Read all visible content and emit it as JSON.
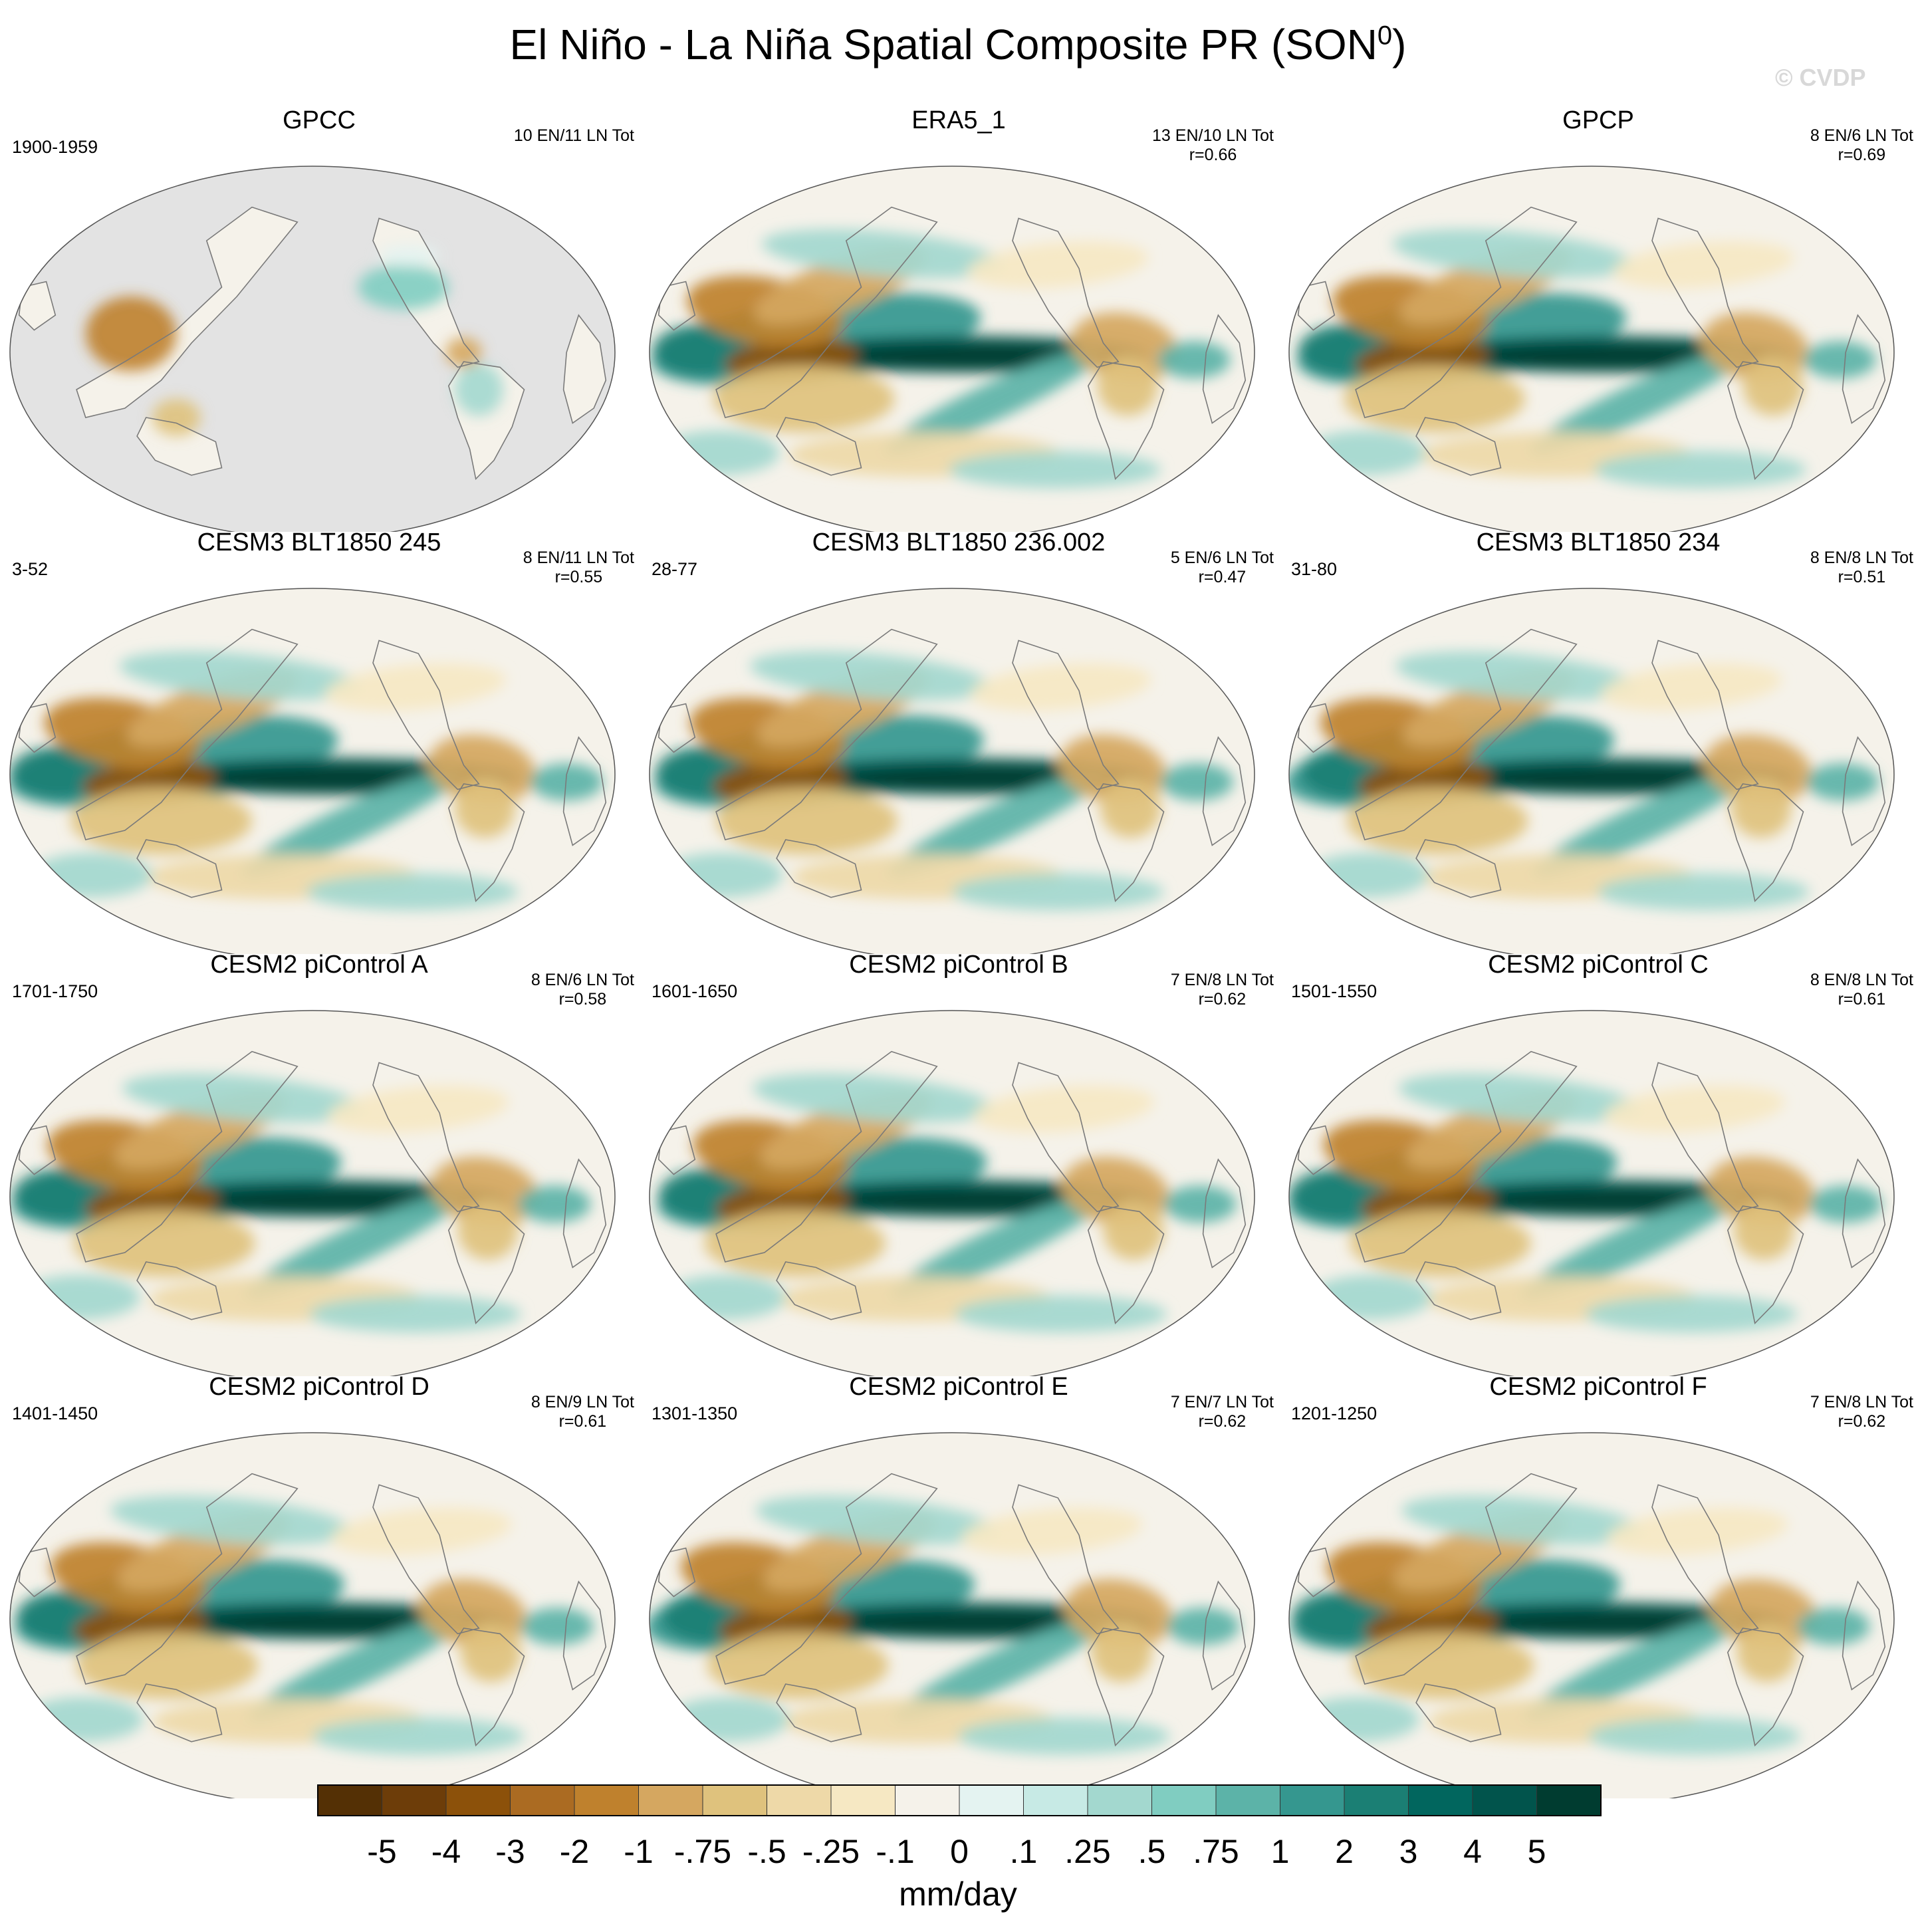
{
  "figure": {
    "title": "El Niño - La Niña Spatial Composite PR (SON",
    "title_sup": "0",
    "title_close": ")",
    "watermark": "© CVDP"
  },
  "colors": {
    "land_fill": "#e3e3e3",
    "coast": "#7a7a7a",
    "palette": [
      "#543005",
      "#6d3d09",
      "#8c510a",
      "#ab6b22",
      "#bf812d",
      "#d5a760",
      "#dfc27d",
      "#eed9a8",
      "#f6e8c3",
      "#f5f2ea",
      "#e4f3f1",
      "#c7eae5",
      "#a3d8cf",
      "#80cdc1",
      "#5cb3a8",
      "#35978f",
      "#1b7f74",
      "#01665e",
      "#01544c",
      "#003c30"
    ]
  },
  "chart_data": {
    "type": "heatmap",
    "projection": "robinson",
    "variable": "PR",
    "season": "SON",
    "units": "mm/day",
    "panels": [
      {
        "title": "GPCC",
        "years": "1900-1959",
        "stats": "10 EN/11 LN Tot",
        "r": "",
        "land_only": true
      },
      {
        "title": "ERA5_1",
        "years": "",
        "stats": "13 EN/10 LN Tot",
        "r": "r=0.66",
        "land_only": false
      },
      {
        "title": "GPCP",
        "years": "",
        "stats": "8 EN/6 LN Tot",
        "r": "r=0.69",
        "land_only": false
      },
      {
        "title": "CESM3 BLT1850 245",
        "years": "3-52",
        "stats": "8 EN/11 LN Tot",
        "r": "r=0.55",
        "land_only": false
      },
      {
        "title": "CESM3 BLT1850 236.002",
        "years": "28-77",
        "stats": "5 EN/6 LN Tot",
        "r": "r=0.47",
        "land_only": false
      },
      {
        "title": "CESM3 BLT1850 234",
        "years": "31-80",
        "stats": "8 EN/8 LN Tot",
        "r": "r=0.51",
        "land_only": false
      },
      {
        "title": "CESM2 piControl A",
        "years": "1701-1750",
        "stats": "8 EN/6 LN Tot",
        "r": "r=0.58",
        "land_only": false
      },
      {
        "title": "CESM2 piControl B",
        "years": "1601-1650",
        "stats": "7 EN/8 LN Tot",
        "r": "r=0.62",
        "land_only": false
      },
      {
        "title": "CESM2 piControl C",
        "years": "1501-1550",
        "stats": "8 EN/8 LN Tot",
        "r": "r=0.61",
        "land_only": false
      },
      {
        "title": "CESM2 piControl D",
        "years": "1401-1450",
        "stats": "8 EN/9 LN Tot",
        "r": "r=0.61",
        "land_only": false
      },
      {
        "title": "CESM2 piControl E",
        "years": "1301-1350",
        "stats": "7 EN/7 LN Tot",
        "r": "r=0.62",
        "land_only": false
      },
      {
        "title": "CESM2 piControl F",
        "years": "1201-1250",
        "stats": "7 EN/8 LN Tot",
        "r": "r=0.62",
        "land_only": false
      }
    ],
    "colorbar": {
      "labels": [
        "-5",
        "-4",
        "-3",
        "-2",
        "-1",
        "-.75",
        "-.5",
        "-.25",
        "-.1",
        "0",
        ".1",
        ".25",
        ".5",
        ".75",
        "1",
        "2",
        "3",
        "4",
        "5"
      ],
      "units_label": "mm/day"
    }
  }
}
